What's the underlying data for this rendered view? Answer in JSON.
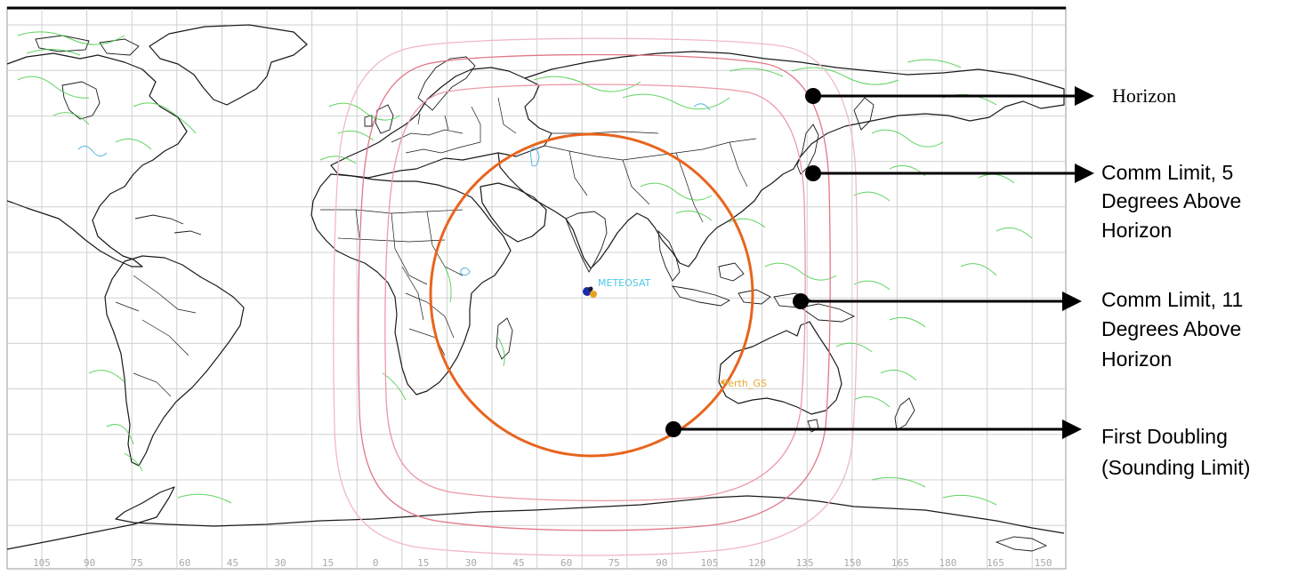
{
  "map": {
    "longitude_ticks": [
      "105",
      "90",
      "75",
      "60",
      "45",
      "30",
      "15",
      "0",
      "15",
      "30",
      "45",
      "60",
      "75",
      "90",
      "105",
      "120",
      "135",
      "150",
      "165",
      "180",
      "165",
      "150"
    ],
    "satellite_label": "METEOSAT",
    "ground_station_label": "Perth_GS"
  },
  "annotations": [
    {
      "lines": [
        "Horizon"
      ]
    },
    {
      "lines": [
        "Comm Limit, 5",
        "Degrees Above",
        "Horizon"
      ]
    },
    {
      "lines": [
        "Comm Limit, 11",
        "Degrees Above",
        "Horizon"
      ]
    },
    {
      "lines": [
        "First Doubling",
        "(Sounding Limit)"
      ]
    }
  ],
  "colors": {
    "horizon_ring": "#f0b8c8",
    "comm_limit_5_ring": "#e07888",
    "comm_limit_11_ring": "#ec9aa8",
    "sounding_limit_ring": "#e8641e",
    "coastline": "#1a1a1a",
    "weather_contours": "#44cc44",
    "lakes": "#5ab4e0",
    "satellite_label": "#4ec8e8",
    "ground_station_label": "#e8a830"
  },
  "icons": {
    "satellite": "satellite-icon",
    "ground_station": "ground-station-icon"
  }
}
